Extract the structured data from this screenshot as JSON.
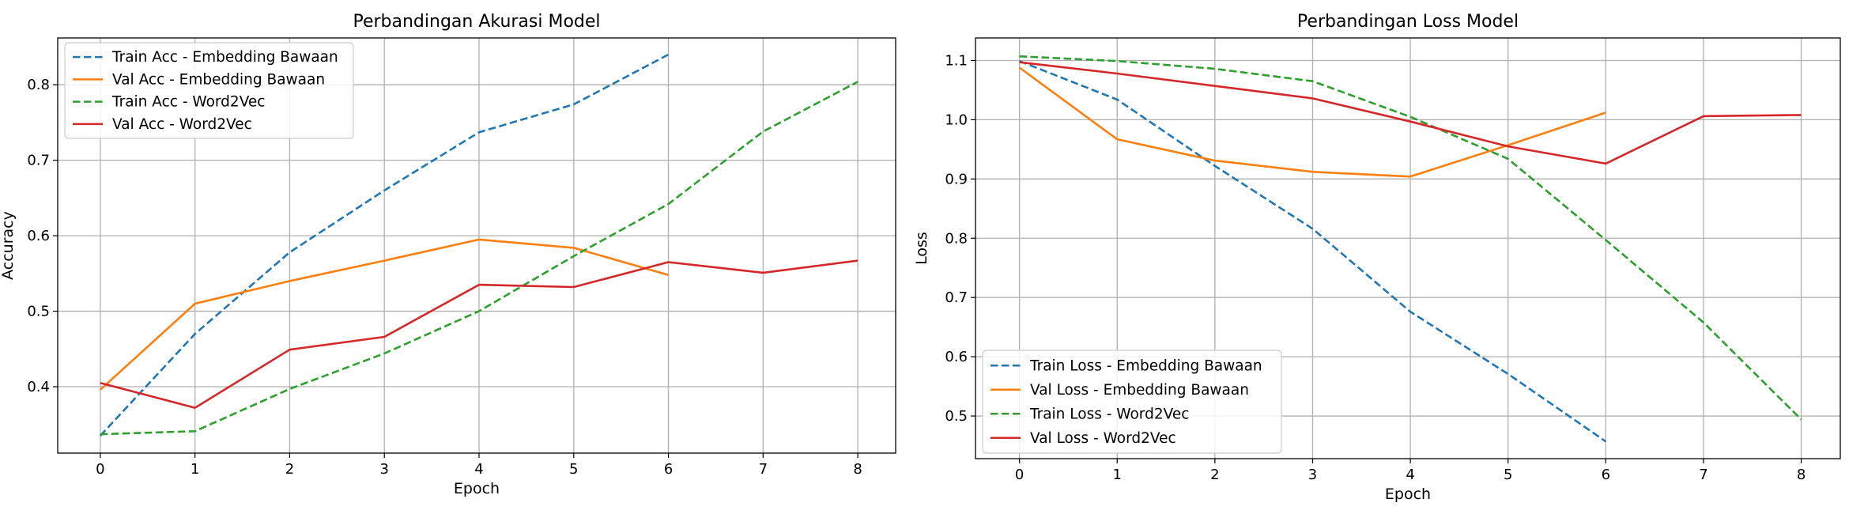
{
  "chart_data": [
    {
      "type": "line",
      "title": "Perbandingan Akurasi Model",
      "xlabel": "Epoch",
      "ylabel": "Accuracy",
      "xlim": [
        -0.45,
        8.4
      ],
      "ylim": [
        0.312,
        0.862
      ],
      "xticks": [
        0,
        1,
        2,
        3,
        4,
        5,
        6,
        7,
        8
      ],
      "yticks": [
        0.4,
        0.5,
        0.6,
        0.7,
        0.8
      ],
      "ytick_labels": [
        "0.4",
        "0.5",
        "0.6",
        "0.7",
        "0.8"
      ],
      "grid": true,
      "legend_placement": "upper left",
      "series": [
        {
          "name": "Train Acc - Embedding Bawaan",
          "color": "#1f77b4",
          "dash": "dashed",
          "x": [
            0,
            1,
            2,
            3,
            4,
            5,
            6
          ],
          "values": [
            0.335,
            0.47,
            0.578,
            0.66,
            0.737,
            0.774,
            0.84
          ]
        },
        {
          "name": "Val Acc - Embedding Bawaan",
          "color": "#ff7f0e",
          "dash": "solid",
          "x": [
            0,
            1,
            2,
            3,
            4,
            5,
            6
          ],
          "values": [
            0.396,
            0.51,
            0.54,
            0.567,
            0.595,
            0.584,
            0.548
          ]
        },
        {
          "name": "Train Acc - Word2Vec",
          "color": "#2ca02c",
          "dash": "dashed",
          "x": [
            0,
            1,
            2,
            3,
            4,
            5,
            6,
            7,
            8
          ],
          "values": [
            0.337,
            0.341,
            0.397,
            0.444,
            0.5,
            0.573,
            0.642,
            0.738,
            0.804
          ]
        },
        {
          "name": "Val Acc - Word2Vec",
          "color": "#d62728",
          "dash": "solid",
          "x": [
            0,
            1,
            2,
            3,
            4,
            5,
            6,
            7,
            8
          ],
          "values": [
            0.405,
            0.372,
            0.449,
            0.466,
            0.535,
            0.532,
            0.565,
            0.551,
            0.567
          ]
        }
      ]
    },
    {
      "type": "line",
      "title": "Perbandingan Loss Model",
      "xlabel": "Epoch",
      "ylabel": "Loss",
      "xlim": [
        -0.45,
        8.4
      ],
      "ylim": [
        0.428,
        1.138
      ],
      "xticks": [
        0,
        1,
        2,
        3,
        4,
        5,
        6,
        7,
        8
      ],
      "yticks": [
        0.5,
        0.6,
        0.7,
        0.8,
        0.9,
        1.0,
        1.1
      ],
      "ytick_labels": [
        "0.5",
        "0.6",
        "0.7",
        "0.8",
        "0.9",
        "1.0",
        "1.1"
      ],
      "grid": true,
      "legend_placement": "lower left",
      "series": [
        {
          "name": "Train Loss - Embedding Bawaan",
          "color": "#1f77b4",
          "dash": "dashed",
          "x": [
            0,
            1,
            2,
            3,
            4,
            5,
            6
          ],
          "values": [
            1.099,
            1.034,
            0.922,
            0.816,
            0.676,
            0.571,
            0.457
          ]
        },
        {
          "name": "Val Loss - Embedding Bawaan",
          "color": "#ff7f0e",
          "dash": "solid",
          "x": [
            0,
            1,
            2,
            3,
            4,
            5,
            6
          ],
          "values": [
            1.088,
            0.967,
            0.931,
            0.912,
            0.904,
            0.957,
            1.012
          ]
        },
        {
          "name": "Train Loss - Word2Vec",
          "color": "#2ca02c",
          "dash": "dashed",
          "x": [
            0,
            1,
            2,
            3,
            4,
            5,
            6,
            7,
            8
          ],
          "values": [
            1.107,
            1.099,
            1.086,
            1.065,
            1.005,
            0.934,
            0.797,
            0.658,
            0.494
          ]
        },
        {
          "name": "Val Loss - Word2Vec",
          "color": "#d62728",
          "dash": "solid",
          "x": [
            0,
            1,
            2,
            3,
            4,
            5,
            6,
            7,
            8
          ],
          "values": [
            1.097,
            1.078,
            1.057,
            1.036,
            0.997,
            0.955,
            0.926,
            1.006,
            1.008
          ]
        }
      ]
    }
  ]
}
